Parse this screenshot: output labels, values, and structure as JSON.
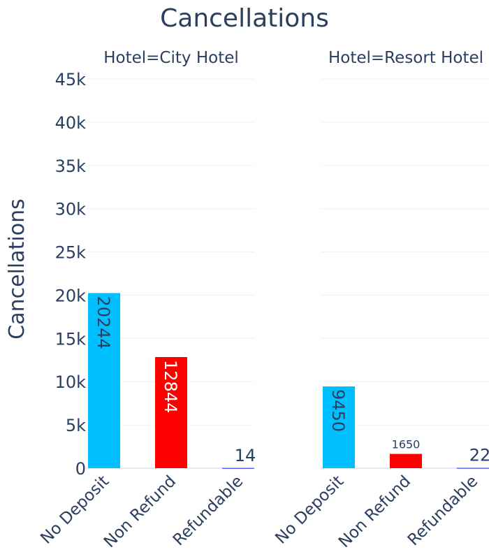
{
  "chart_data": {
    "type": "bar",
    "title": "Cancellations",
    "ylabel": "Cancellations",
    "ylim": [
      0,
      45000
    ],
    "yticks": [
      0,
      5000,
      10000,
      15000,
      20000,
      25000,
      30000,
      35000,
      40000,
      45000
    ],
    "ytick_labels": [
      "0",
      "5k",
      "10k",
      "15k",
      "20k",
      "25k",
      "30k",
      "35k",
      "40k",
      "45k"
    ],
    "grid": true,
    "categories": [
      "No Deposit",
      "Non Refund",
      "Refundable"
    ],
    "category_colors": [
      "#00bfff",
      "#ff0000",
      "#0000ff"
    ],
    "facets": [
      {
        "label": "Hotel=City Hotel",
        "values": [
          20244,
          12844,
          14
        ],
        "value_labels": [
          "20244",
          "12844",
          "14"
        ]
      },
      {
        "label": "Hotel=Resort Hotel",
        "values": [
          9450,
          1650,
          22
        ],
        "value_labels": [
          "9450",
          "1650",
          "22"
        ]
      }
    ]
  }
}
